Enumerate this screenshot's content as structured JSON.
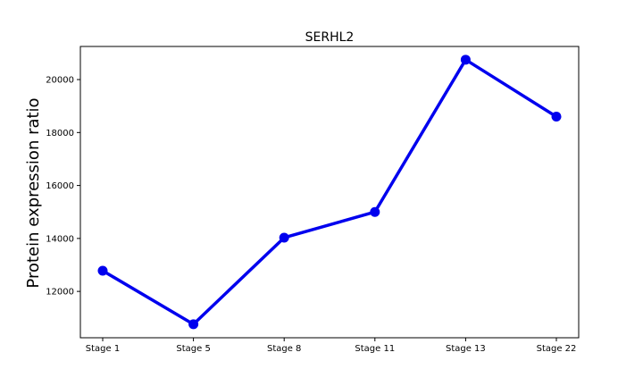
{
  "chart_data": {
    "type": "line",
    "title": "SERHL2",
    "xlabel": "",
    "ylabel": "Protein expression ratio",
    "categories": [
      "Stage 1",
      "Stage 5",
      "Stage 8",
      "Stage 11",
      "Stage 13",
      "Stage 22"
    ],
    "series": [
      {
        "values": [
          12780,
          10760,
          14030,
          15000,
          20750,
          18600
        ]
      }
    ],
    "ylim": [
      10250,
      21250
    ],
    "yticks": [
      12000,
      14000,
      16000,
      18000,
      20000
    ],
    "grid": false,
    "legend": "none",
    "line_color": "#0000ee"
  }
}
